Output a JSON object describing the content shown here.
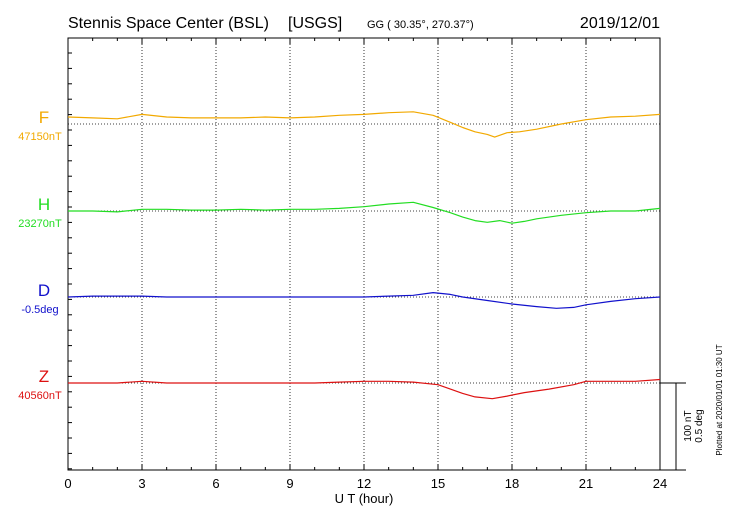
{
  "header": {
    "station": "Stennis Space Center (BSL)",
    "network": "[USGS]",
    "coords": "GG ( 30.35°, 270.37°)",
    "date": "2019/12/01"
  },
  "plotted_note": "Plotted at 2020/01/01 01:30 UT",
  "scale_labels": [
    "100 nT",
    "0.5 deg"
  ],
  "colors": {
    "F": "#f2a900",
    "H": "#22dd22",
    "D": "#1111cc",
    "Z": "#dd1111"
  },
  "chart_data": {
    "type": "line",
    "xlabel": "U T (hour)",
    "xlim": [
      0,
      24
    ],
    "xticks": [
      "0",
      "3",
      "6",
      "9",
      "12",
      "15",
      "18",
      "21",
      "24"
    ],
    "grid": true,
    "scale_bar": "100 nT / 0.5 deg",
    "series": [
      {
        "name": "F",
        "baseline_label": "47150nT",
        "baseline": 47150,
        "unit": "nT",
        "x": [
          0,
          1,
          2,
          3,
          4,
          5,
          6,
          7,
          8,
          9,
          10,
          11,
          12,
          13,
          14,
          14.8,
          15.5,
          16,
          16.5,
          17,
          17.3,
          17.8,
          18.3,
          19,
          20,
          21,
          22,
          23,
          24
        ],
        "values": [
          47158,
          47157,
          47156,
          47161,
          47158,
          47157,
          47157,
          47157,
          47158,
          47157,
          47158,
          47160,
          47161,
          47163,
          47164,
          47160,
          47152,
          47146,
          47141,
          47138,
          47135,
          47140,
          47141,
          47144,
          47150,
          47155,
          47158,
          47159,
          47161
        ]
      },
      {
        "name": "H",
        "baseline_label": "23270nT",
        "baseline": 23270,
        "unit": "nT",
        "x": [
          0,
          1,
          2,
          3,
          4,
          5,
          6,
          7,
          8,
          9,
          10,
          11,
          12,
          13,
          14,
          14.8,
          15.5,
          16,
          16.5,
          17,
          17.5,
          18,
          18.5,
          19,
          20,
          21,
          22,
          23,
          24
        ],
        "values": [
          23270,
          23270,
          23269,
          23272,
          23272,
          23271,
          23271,
          23272,
          23271,
          23272,
          23272,
          23273,
          23275,
          23278,
          23280,
          23274,
          23268,
          23263,
          23259,
          23257,
          23259,
          23256,
          23258,
          23261,
          23265,
          23268,
          23270,
          23270,
          23273
        ]
      },
      {
        "name": "D",
        "baseline_label": "-0.5deg",
        "baseline": -0.5,
        "unit": "deg",
        "x": [
          0,
          1,
          2,
          3,
          4,
          5,
          6,
          7,
          8,
          9,
          10,
          11,
          12,
          13,
          14,
          14.8,
          15.5,
          16,
          17,
          18,
          19,
          19.8,
          20.5,
          21,
          22,
          23,
          24
        ],
        "values": [
          -0.5,
          -0.495,
          -0.495,
          -0.495,
          -0.5,
          -0.5,
          -0.5,
          -0.5,
          -0.5,
          -0.5,
          -0.5,
          -0.5,
          -0.5,
          -0.495,
          -0.49,
          -0.475,
          -0.485,
          -0.5,
          -0.52,
          -0.54,
          -0.555,
          -0.565,
          -0.56,
          -0.545,
          -0.525,
          -0.51,
          -0.5
        ]
      },
      {
        "name": "Z",
        "baseline_label": "40560nT",
        "baseline": 40560,
        "unit": "nT",
        "x": [
          0,
          1,
          2,
          3,
          4,
          5,
          6,
          7,
          8,
          9,
          10,
          11,
          12,
          13,
          14,
          15,
          16,
          16.5,
          17.2,
          17.8,
          18.5,
          19.5,
          20.5,
          21,
          22,
          23,
          24
        ],
        "values": [
          40560,
          40560,
          40560,
          40562,
          40560,
          40560,
          40560,
          40560,
          40560,
          40560,
          40560,
          40561,
          40562,
          40562,
          40561,
          40558,
          40548,
          40544,
          40542,
          40545,
          40549,
          40553,
          40558,
          40562,
          40562,
          40562,
          40564
        ]
      }
    ]
  }
}
